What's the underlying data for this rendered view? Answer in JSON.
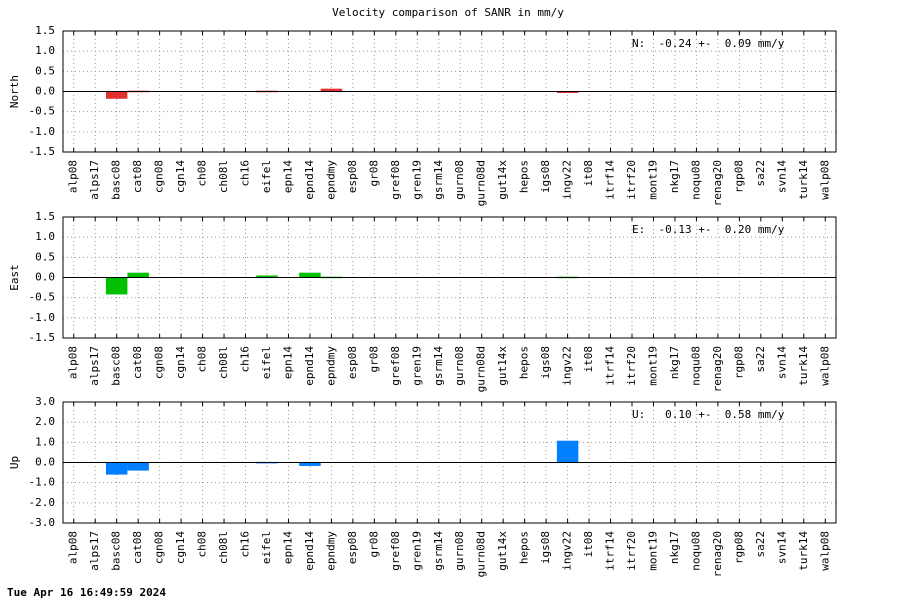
{
  "title": "Velocity comparison of SANR in mm/y",
  "footer": "Tue Apr 16 16:49:59 2024",
  "chart_data": [
    {
      "type": "bar",
      "ylabel": "North",
      "annotation": "N:  -0.24 +-  0.09 mm/y",
      "color": "#e03030",
      "categories": [
        "alp08",
        "alps17",
        "basc08",
        "cat08",
        "cgn08",
        "cgn14",
        "ch08",
        "ch08l",
        "ch16",
        "eifel",
        "epn14",
        "epnd14",
        "epndmy",
        "esp08",
        "gr08",
        "gref08",
        "gren19",
        "gsrm14",
        "gurn08",
        "gurn08d",
        "gut14x",
        "hepos",
        "igs08",
        "ingv22",
        "it08",
        "itrf14",
        "itrf20",
        "mont19",
        "nkg17",
        "noqu08",
        "renag20",
        "rgp08",
        "sa22",
        "svn14",
        "turk14",
        "walp08"
      ],
      "values": [
        null,
        null,
        -0.18,
        0.02,
        null,
        null,
        null,
        null,
        null,
        0.02,
        null,
        null,
        0.07,
        null,
        null,
        null,
        null,
        null,
        null,
        null,
        null,
        null,
        null,
        -0.03,
        null,
        null,
        null,
        null,
        null,
        null,
        null,
        null,
        null,
        null,
        null,
        null
      ],
      "ylim": [
        -1.5,
        1.5
      ],
      "yticks": [
        {
          "value": 1.5,
          "label": "1.5"
        },
        {
          "value": 1,
          "label": "1.0"
        },
        {
          "value": 0.5,
          "label": "0.5"
        },
        {
          "value": 0,
          "label": "0.0"
        },
        {
          "value": -0.5,
          "label": "-0.5"
        },
        {
          "value": -1,
          "label": "-1.0"
        },
        {
          "value": -1.5,
          "label": "-1.5"
        }
      ],
      "grid": true
    },
    {
      "type": "bar",
      "ylabel": "East",
      "annotation": "E:  -0.13 +-  0.20 mm/y",
      "color": "#00c000",
      "categories": [
        "alp08",
        "alps17",
        "basc08",
        "cat08",
        "cgn08",
        "cgn14",
        "ch08",
        "ch08l",
        "ch16",
        "eifel",
        "epn14",
        "epnd14",
        "epndmy",
        "esp08",
        "gr08",
        "gref08",
        "gren19",
        "gsrm14",
        "gurn08",
        "gurn08d",
        "gut14x",
        "hepos",
        "igs08",
        "ingv22",
        "it08",
        "itrf14",
        "itrf20",
        "mont19",
        "nkg17",
        "noqu08",
        "renag20",
        "rgp08",
        "sa22",
        "svn14",
        "turk14",
        "walp08"
      ],
      "values": [
        null,
        null,
        -0.42,
        0.12,
        null,
        null,
        null,
        null,
        null,
        0.05,
        null,
        0.12,
        0.02,
        null,
        null,
        null,
        null,
        null,
        null,
        null,
        null,
        null,
        null,
        0.02,
        null,
        null,
        null,
        null,
        null,
        null,
        null,
        null,
        null,
        null,
        null,
        null
      ],
      "ylim": [
        -1.5,
        1.5
      ],
      "yticks": [
        {
          "value": 1.5,
          "label": "1.5"
        },
        {
          "value": 1,
          "label": "1.0"
        },
        {
          "value": 0.5,
          "label": "0.5"
        },
        {
          "value": 0,
          "label": "0.0"
        },
        {
          "value": -0.5,
          "label": "-0.5"
        },
        {
          "value": -1,
          "label": "-1.0"
        },
        {
          "value": -1.5,
          "label": "-1.5"
        }
      ],
      "grid": true
    },
    {
      "type": "bar",
      "ylabel": "Up",
      "annotation": "U:   0.10 +-  0.58 mm/y",
      "color": "#0080ff",
      "categories": [
        "alp08",
        "alps17",
        "basc08",
        "cat08",
        "cgn08",
        "cgn14",
        "ch08",
        "ch08l",
        "ch16",
        "eifel",
        "epn14",
        "epnd14",
        "epndmy",
        "esp08",
        "gr08",
        "gref08",
        "gren19",
        "gsrm14",
        "gurn08",
        "gurn08d",
        "gut14x",
        "hepos",
        "igs08",
        "ingv22",
        "it08",
        "itrf14",
        "itrf20",
        "mont19",
        "nkg17",
        "noqu08",
        "renag20",
        "rgp08",
        "sa22",
        "svn14",
        "turk14",
        "walp08"
      ],
      "values": [
        null,
        null,
        -0.6,
        -0.4,
        null,
        null,
        null,
        null,
        null,
        0.03,
        null,
        -0.17,
        null,
        null,
        null,
        null,
        null,
        null,
        null,
        null,
        null,
        null,
        null,
        1.08,
        null,
        null,
        null,
        null,
        null,
        null,
        null,
        null,
        null,
        null,
        null,
        null
      ],
      "ylim": [
        -3,
        3
      ],
      "yticks": [
        {
          "value": 3,
          "label": "3.0"
        },
        {
          "value": 2,
          "label": "2.0"
        },
        {
          "value": 1,
          "label": "1.0"
        },
        {
          "value": 0,
          "label": "0.0"
        },
        {
          "value": -1,
          "label": "-1.0"
        },
        {
          "value": -2,
          "label": "-2.0"
        },
        {
          "value": -3,
          "label": "-3.0"
        }
      ],
      "grid": true
    }
  ]
}
